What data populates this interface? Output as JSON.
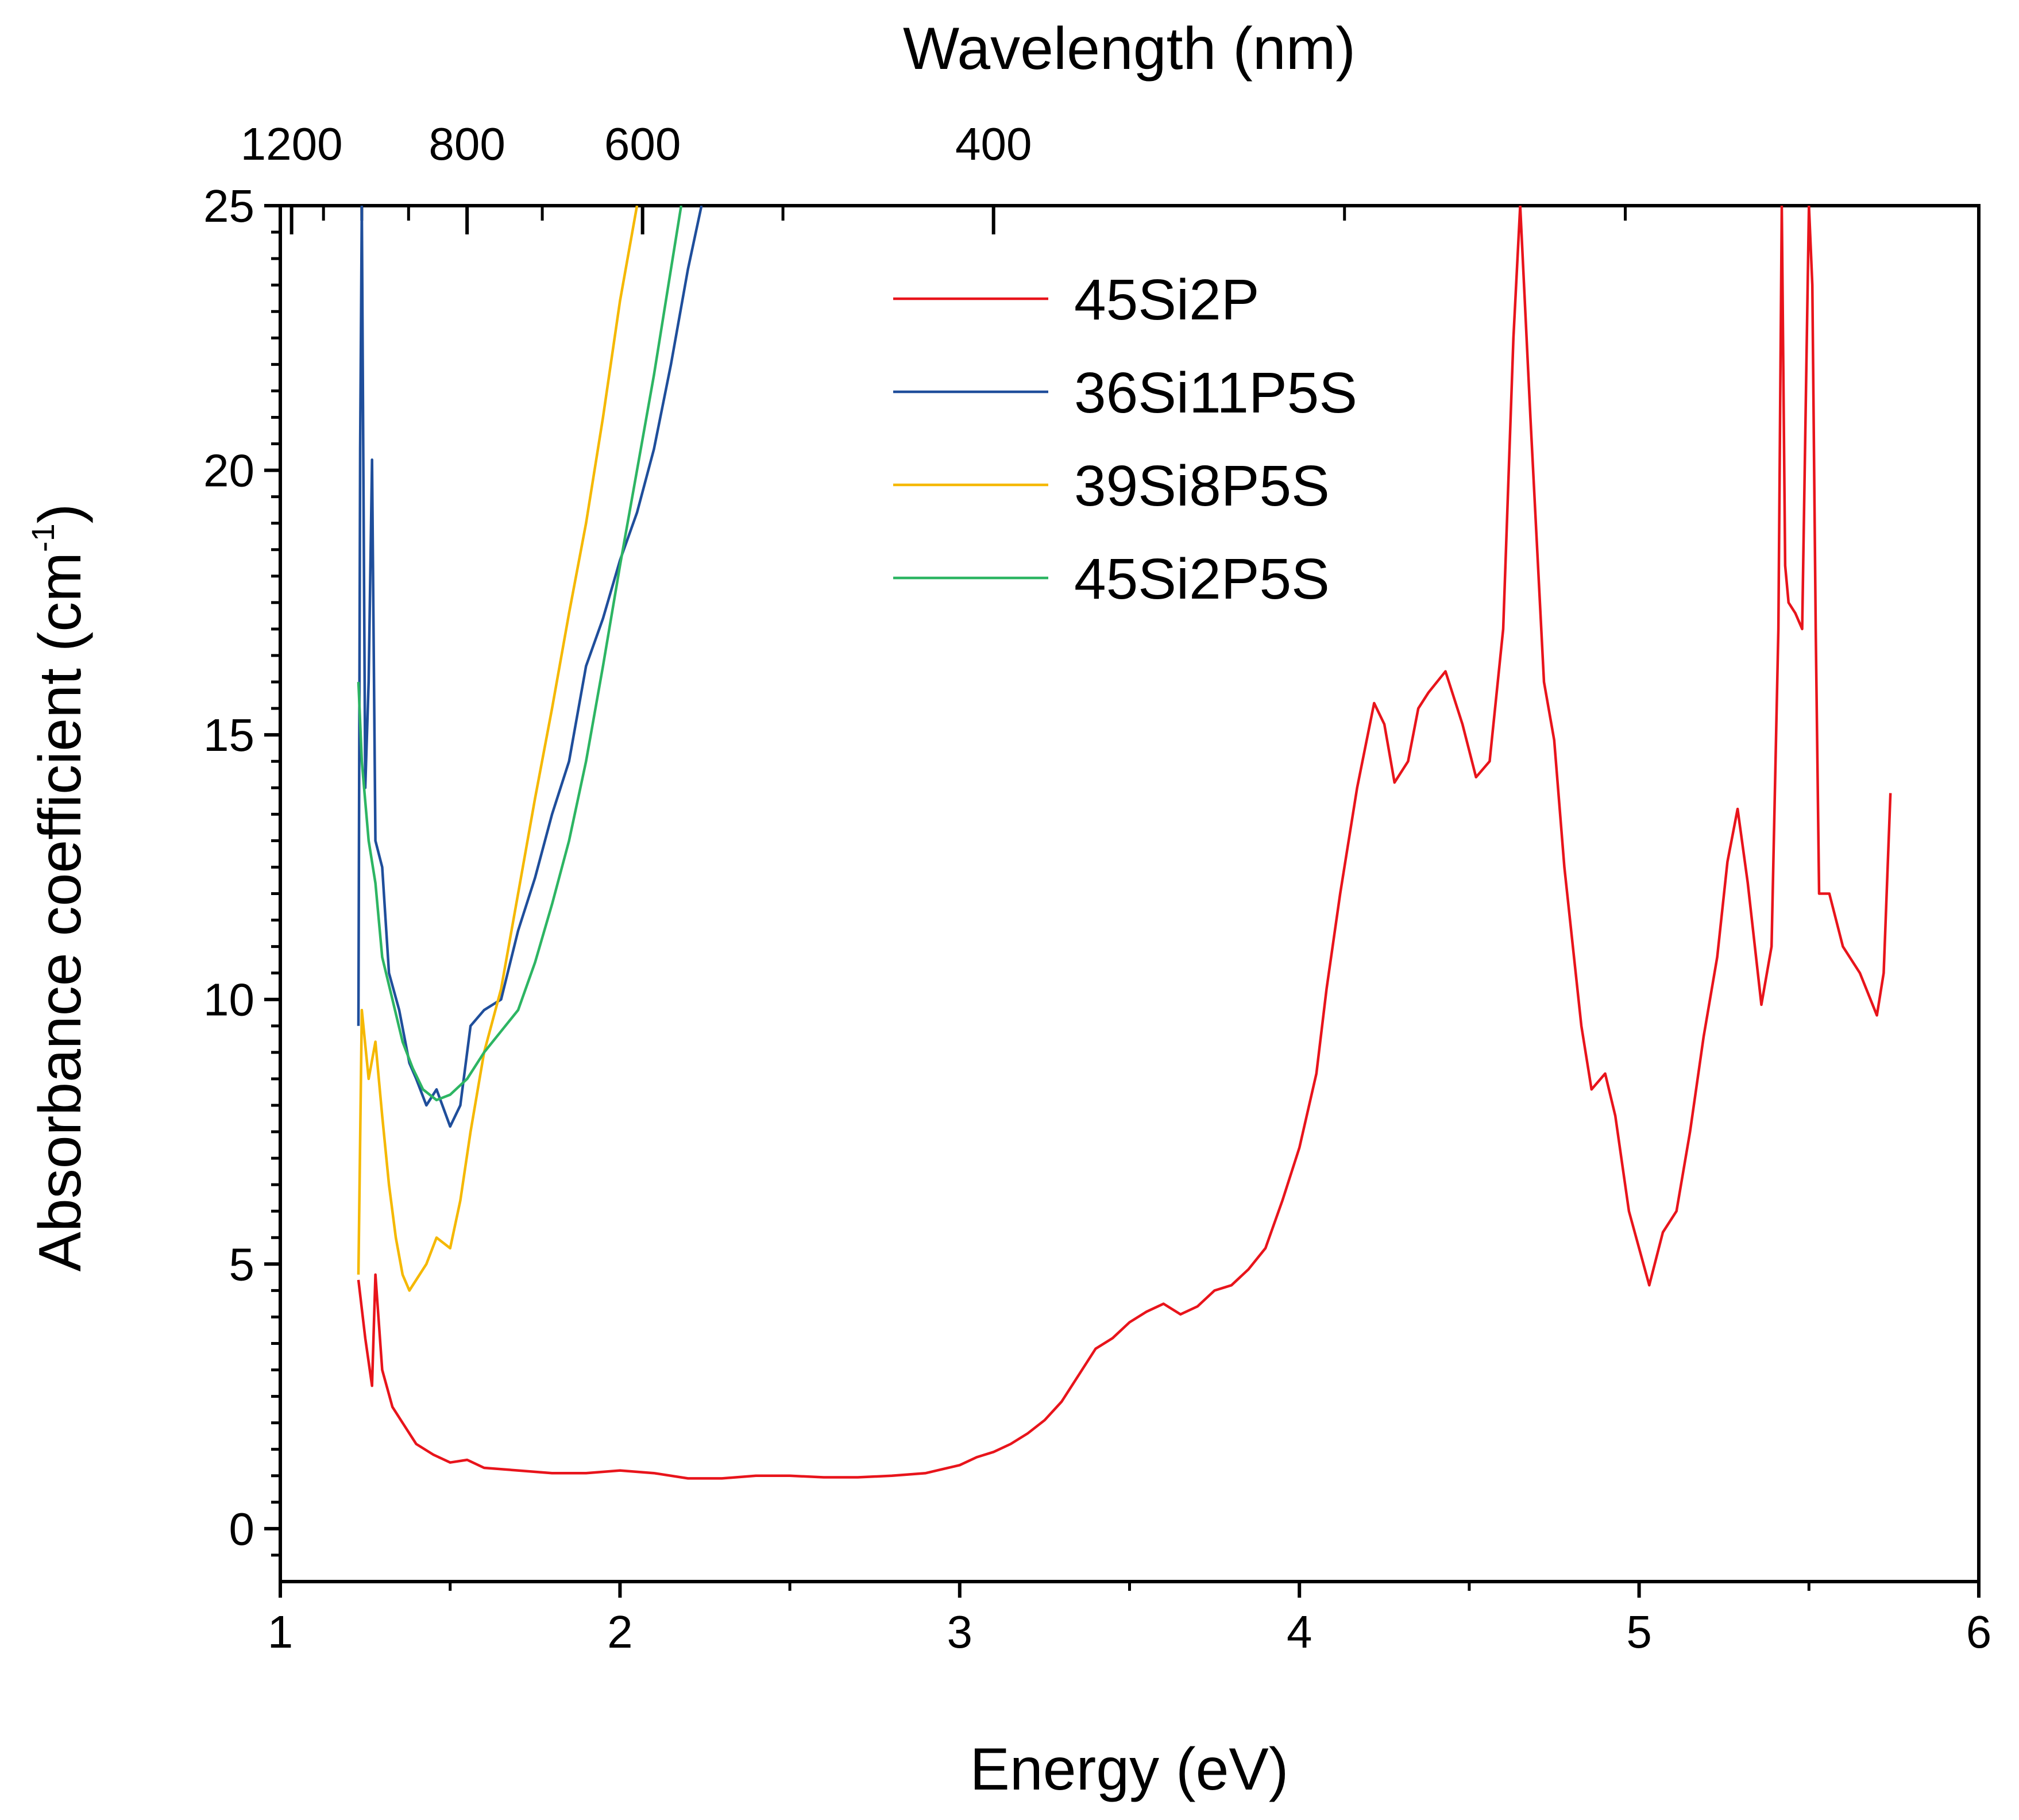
{
  "chart_data": {
    "type": "line",
    "title": "",
    "xlabel": "Energy (eV)",
    "ylabel_main": "Absorbance coefficient (cm",
    "ylabel_sup": "-1",
    "ylabel_close": ")",
    "top_xlabel": "Wavelength (nm)",
    "xlim": [
      1,
      6
    ],
    "ylim": [
      -1,
      25
    ],
    "x_ticks": [
      1,
      2,
      3,
      4,
      5,
      6
    ],
    "x_tick_labels": [
      "1",
      "2",
      "3",
      "4",
      "5",
      "6"
    ],
    "y_ticks": [
      0,
      5,
      10,
      15,
      20,
      25
    ],
    "y_tick_labels": [
      "0",
      "5",
      "10",
      "15",
      "20",
      "25"
    ],
    "top_ticks_nm": [
      1200,
      800,
      600,
      400
    ],
    "top_tick_labels": [
      "1200",
      "800",
      "600",
      "400"
    ],
    "legend_position": "top-center",
    "series": [
      {
        "name": "45Si2P",
        "color": "#e8141b",
        "points": [
          [
            1.23,
            4.7
          ],
          [
            1.25,
            3.6
          ],
          [
            1.27,
            2.7
          ],
          [
            1.28,
            4.8
          ],
          [
            1.3,
            3.0
          ],
          [
            1.33,
            2.3
          ],
          [
            1.36,
            2.0
          ],
          [
            1.4,
            1.6
          ],
          [
            1.45,
            1.4
          ],
          [
            1.5,
            1.25
          ],
          [
            1.55,
            1.3
          ],
          [
            1.6,
            1.15
          ],
          [
            1.7,
            1.1
          ],
          [
            1.8,
            1.05
          ],
          [
            1.9,
            1.05
          ],
          [
            2.0,
            1.1
          ],
          [
            2.1,
            1.05
          ],
          [
            2.2,
            0.95
          ],
          [
            2.3,
            0.95
          ],
          [
            2.4,
            1.0
          ],
          [
            2.5,
            1.0
          ],
          [
            2.6,
            0.97
          ],
          [
            2.7,
            0.97
          ],
          [
            2.8,
            1.0
          ],
          [
            2.9,
            1.05
          ],
          [
            3.0,
            1.2
          ],
          [
            3.05,
            1.35
          ],
          [
            3.1,
            1.45
          ],
          [
            3.15,
            1.6
          ],
          [
            3.2,
            1.8
          ],
          [
            3.25,
            2.05
          ],
          [
            3.3,
            2.4
          ],
          [
            3.35,
            2.9
          ],
          [
            3.4,
            3.4
          ],
          [
            3.45,
            3.6
          ],
          [
            3.5,
            3.9
          ],
          [
            3.55,
            4.1
          ],
          [
            3.6,
            4.25
          ],
          [
            3.65,
            4.05
          ],
          [
            3.7,
            4.2
          ],
          [
            3.75,
            4.5
          ],
          [
            3.8,
            4.6
          ],
          [
            3.85,
            4.9
          ],
          [
            3.9,
            5.3
          ],
          [
            3.95,
            6.2
          ],
          [
            4.0,
            7.2
          ],
          [
            4.05,
            8.6
          ],
          [
            4.08,
            10.2
          ],
          [
            4.12,
            12.0
          ],
          [
            4.17,
            14.0
          ],
          [
            4.22,
            15.6
          ],
          [
            4.25,
            15.2
          ],
          [
            4.28,
            14.1
          ],
          [
            4.32,
            14.5
          ],
          [
            4.35,
            15.5
          ],
          [
            4.38,
            15.8
          ],
          [
            4.43,
            16.2
          ],
          [
            4.48,
            15.2
          ],
          [
            4.52,
            14.2
          ],
          [
            4.56,
            14.5
          ],
          [
            4.6,
            17.0
          ],
          [
            4.63,
            22.5
          ],
          [
            4.65,
            25.0
          ],
          [
            4.68,
            21.0
          ],
          [
            4.72,
            16.0
          ],
          [
            4.75,
            14.9
          ],
          [
            4.78,
            12.5
          ],
          [
            4.83,
            9.5
          ],
          [
            4.86,
            8.3
          ],
          [
            4.9,
            8.6
          ],
          [
            4.93,
            7.8
          ],
          [
            4.97,
            6.0
          ],
          [
            5.03,
            4.6
          ],
          [
            5.07,
            5.6
          ],
          [
            5.11,
            6.0
          ],
          [
            5.15,
            7.5
          ],
          [
            5.19,
            9.3
          ],
          [
            5.23,
            10.8
          ],
          [
            5.26,
            12.6
          ],
          [
            5.29,
            13.6
          ],
          [
            5.32,
            12.2
          ],
          [
            5.36,
            9.9
          ],
          [
            5.39,
            11.0
          ],
          [
            5.41,
            17.0
          ],
          [
            5.42,
            25.0
          ],
          [
            5.43,
            18.2
          ],
          [
            5.44,
            17.5
          ],
          [
            5.46,
            17.3
          ],
          [
            5.48,
            17.0
          ],
          [
            5.5,
            25.0
          ],
          [
            5.51,
            23.5
          ],
          [
            5.52,
            17.0
          ],
          [
            5.53,
            12.0
          ],
          [
            5.56,
            12.0
          ],
          [
            5.6,
            11.0
          ],
          [
            5.65,
            10.5
          ],
          [
            5.7,
            9.7
          ],
          [
            5.72,
            10.5
          ],
          [
            5.74,
            13.9
          ]
        ]
      },
      {
        "name": "36Si11P5S",
        "color": "#1f4e9b",
        "points": [
          [
            1.23,
            9.5
          ],
          [
            1.235,
            20.4
          ],
          [
            1.24,
            25.0
          ],
          [
            1.25,
            14.0
          ],
          [
            1.26,
            16.0
          ],
          [
            1.27,
            20.2
          ],
          [
            1.28,
            13.0
          ],
          [
            1.3,
            12.5
          ],
          [
            1.32,
            10.5
          ],
          [
            1.35,
            9.8
          ],
          [
            1.38,
            8.8
          ],
          [
            1.4,
            8.5
          ],
          [
            1.43,
            8.0
          ],
          [
            1.46,
            8.3
          ],
          [
            1.5,
            7.6
          ],
          [
            1.53,
            8.0
          ],
          [
            1.56,
            9.5
          ],
          [
            1.6,
            9.8
          ],
          [
            1.65,
            10.0
          ],
          [
            1.7,
            11.3
          ],
          [
            1.75,
            12.3
          ],
          [
            1.8,
            13.5
          ],
          [
            1.85,
            14.5
          ],
          [
            1.9,
            16.3
          ],
          [
            1.95,
            17.2
          ],
          [
            2.0,
            18.3
          ],
          [
            2.05,
            19.2
          ],
          [
            2.1,
            20.4
          ],
          [
            2.15,
            22.0
          ],
          [
            2.2,
            23.8
          ],
          [
            2.24,
            25.0
          ]
        ]
      },
      {
        "name": "39Si8P5S",
        "color": "#f5b800",
        "points": [
          [
            1.23,
            4.8
          ],
          [
            1.24,
            9.8
          ],
          [
            1.26,
            8.5
          ],
          [
            1.28,
            9.2
          ],
          [
            1.3,
            7.8
          ],
          [
            1.32,
            6.5
          ],
          [
            1.34,
            5.5
          ],
          [
            1.36,
            4.8
          ],
          [
            1.38,
            4.5
          ],
          [
            1.4,
            4.7
          ],
          [
            1.43,
            5.0
          ],
          [
            1.46,
            5.5
          ],
          [
            1.5,
            5.3
          ],
          [
            1.53,
            6.2
          ],
          [
            1.56,
            7.5
          ],
          [
            1.6,
            9.0
          ],
          [
            1.65,
            10.2
          ],
          [
            1.7,
            12.0
          ],
          [
            1.75,
            13.8
          ],
          [
            1.8,
            15.5
          ],
          [
            1.85,
            17.3
          ],
          [
            1.9,
            19.0
          ],
          [
            1.95,
            21.0
          ],
          [
            2.0,
            23.2
          ],
          [
            2.05,
            25.0
          ]
        ]
      },
      {
        "name": "45Si2P5S",
        "color": "#2db563",
        "points": [
          [
            1.23,
            16.0
          ],
          [
            1.24,
            14.5
          ],
          [
            1.26,
            13.0
          ],
          [
            1.28,
            12.2
          ],
          [
            1.3,
            10.8
          ],
          [
            1.33,
            10.0
          ],
          [
            1.36,
            9.2
          ],
          [
            1.39,
            8.7
          ],
          [
            1.42,
            8.3
          ],
          [
            1.46,
            8.1
          ],
          [
            1.5,
            8.2
          ],
          [
            1.55,
            8.5
          ],
          [
            1.6,
            9.0
          ],
          [
            1.65,
            9.4
          ],
          [
            1.7,
            9.8
          ],
          [
            1.75,
            10.7
          ],
          [
            1.8,
            11.8
          ],
          [
            1.85,
            13.0
          ],
          [
            1.9,
            14.5
          ],
          [
            1.95,
            16.3
          ],
          [
            2.0,
            18.2
          ],
          [
            2.05,
            20.0
          ],
          [
            2.1,
            21.8
          ],
          [
            2.15,
            23.8
          ],
          [
            2.18,
            25.0
          ]
        ]
      }
    ]
  }
}
